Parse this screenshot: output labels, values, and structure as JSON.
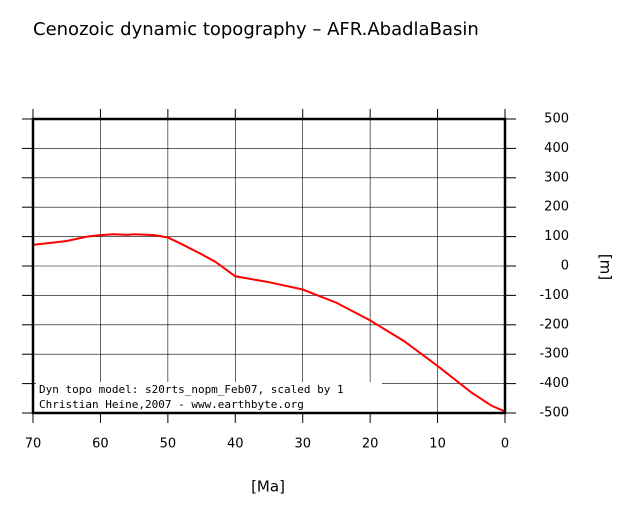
{
  "chart_data": {
    "type": "line",
    "title": "Cenozoic dynamic topography – AFR.AbadlaBasin",
    "x_label": "[Ma]",
    "y_label": "[m]",
    "annotations": [
      "Dyn topo model: s20rts_nopm_Feb07, scaled by 1",
      "Christian Heine,2007 - www.earthbyte.org"
    ],
    "x": [
      70,
      65,
      62,
      60,
      58,
      56,
      55,
      52,
      50,
      48,
      45,
      43,
      40,
      35,
      30,
      25,
      20,
      15,
      10,
      5,
      2,
      0
    ],
    "series": [
      {
        "name": "AFR.AbadlaBasin",
        "color": "#ff0000",
        "values": [
          72,
          85,
          100,
          105,
          108,
          106,
          108,
          105,
          97,
          75,
          40,
          15,
          -35,
          -55,
          -80,
          -125,
          -185,
          -255,
          -340,
          -430,
          -475,
          -495
        ]
      }
    ],
    "xlim": [
      70,
      0
    ],
    "xticks": [
      70,
      60,
      50,
      40,
      30,
      20,
      10,
      0
    ],
    "ylim": [
      -500,
      500
    ],
    "yticks": [
      -500,
      -400,
      -300,
      -200,
      -100,
      0,
      100,
      200,
      300,
      400,
      500
    ],
    "grid": true
  }
}
